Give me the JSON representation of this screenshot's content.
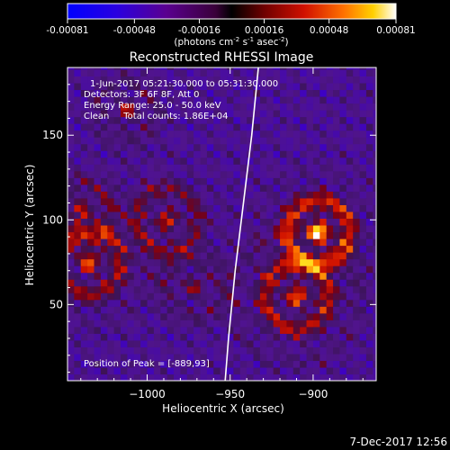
{
  "chart_data": {
    "type": "heatmap",
    "title": "Reconstructed RHESSI Image",
    "xlabel": "Heliocentric X (arcsec)",
    "ylabel": "Heliocentric Y (arcsec)",
    "xlim": [
      -1048,
      -862
    ],
    "ylim": [
      5,
      190
    ],
    "xticks": [
      -1000,
      -950,
      -900
    ],
    "yticks": [
      50,
      100,
      150
    ],
    "colorbar": {
      "range": [
        -0.00081,
        0.00081
      ],
      "tick_values": [
        -0.00081,
        -0.00048,
        -0.00016,
        0.00016,
        0.00048,
        0.00081
      ],
      "tick_labels": [
        "-0.00081",
        "-0.00048",
        "-0.00016",
        "0.00016",
        "0.00048",
        "0.00081"
      ],
      "unit_text": "(photons cm",
      "unit_exp1": "-2",
      "unit_mid": " s",
      "unit_exp2": "-1",
      "unit_mid2": " asec",
      "unit_exp3": "-2",
      "unit_close": ")"
    },
    "annotations": [
      "1-Jun-2017 05:21:30.000 to 05:31:30.000",
      "Detectors: 3F 6F 8F, Att 0",
      "Energy Range: 25.0 - 50.0 keV",
      "Clean     Total counts: 1.86E+04"
    ],
    "peak_label": "Position of Peak = [-889,93]",
    "peak": {
      "x": -889,
      "y": 93
    },
    "limb_curve": [
      [
        -933,
        190
      ],
      [
        -937,
        150
      ],
      [
        -942,
        110
      ],
      [
        -947,
        70
      ],
      [
        -951,
        30
      ],
      [
        -953,
        5
      ]
    ],
    "sources": [
      {
        "x": -897,
        "y": 93,
        "strength": 1.0,
        "spread": 16
      },
      {
        "x": -910,
        "y": 55,
        "strength": 0.65,
        "spread": 20
      },
      {
        "x": -1035,
        "y": 75,
        "strength": 0.65,
        "spread": 18
      },
      {
        "x": -1040,
        "y": 105,
        "strength": 0.45,
        "spread": 14
      },
      {
        "x": -988,
        "y": 100,
        "strength": 0.55,
        "spread": 16
      },
      {
        "x": -1012,
        "y": 165,
        "strength": 0.45,
        "spread": 12
      },
      {
        "x": -972,
        "y": 60,
        "strength": 0.35,
        "spread": 14
      }
    ]
  },
  "footer": {
    "date": "7-Dec-2017 12:56"
  },
  "colors": {
    "background": "#000000",
    "text": "#ffffff",
    "limb": "#ffffff"
  }
}
